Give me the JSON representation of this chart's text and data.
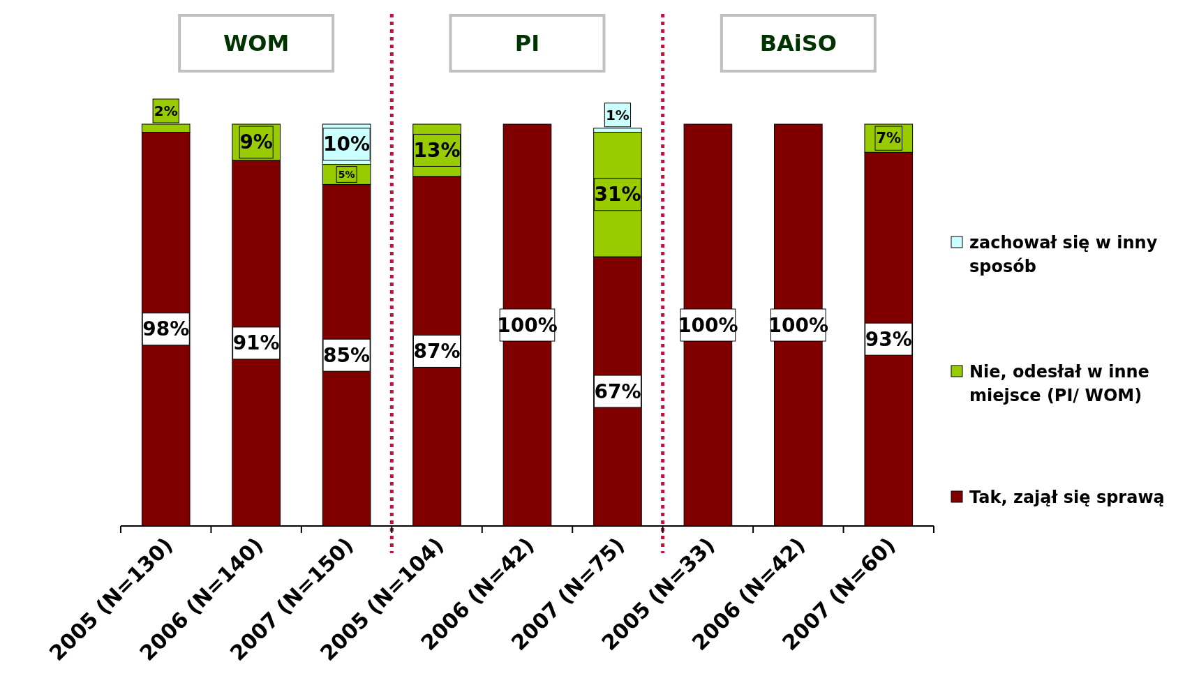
{
  "chart_data": {
    "type": "bar",
    "stacked": true,
    "legend": "right",
    "tick_labels": "x",
    "categories": [
      "2005 (N=130)",
      "2006 (N=140)",
      "2007 (N=150)",
      "2005 (N=104)",
      "2006 (N=42)",
      "2007 (N=75)",
      "2005 (N=33)",
      "2006 (N=42)",
      "2007 (N=60)"
    ],
    "series": [
      {
        "name": "Tak, zajął się sprawą",
        "color": "#800000",
        "values": [
          98,
          91,
          85,
          87,
          100,
          67,
          100,
          100,
          93
        ],
        "value_labels": [
          "98%",
          "91%",
          "85%",
          "87%",
          "100%",
          "67%",
          "100%",
          "100%",
          "93%"
        ]
      },
      {
        "name": "Nie, odesłał w inne miejsce (PI/ WOM)",
        "color": "#99cc00",
        "values": [
          2,
          9,
          5,
          13,
          null,
          31,
          null,
          null,
          7
        ],
        "value_labels": [
          "2%",
          "9%",
          "5%",
          "13%",
          null,
          "31%",
          null,
          null,
          "7%"
        ]
      },
      {
        "name": "zachował się w inny sposób",
        "color": "#ccffff",
        "values": [
          null,
          null,
          10,
          null,
          null,
          1,
          null,
          null,
          null
        ],
        "value_labels": [
          null,
          null,
          "10%",
          null,
          null,
          "1%",
          null,
          null,
          null
        ]
      }
    ],
    "annotations": [
      "WOM",
      "PI",
      "BAiSO"
    ]
  }
}
